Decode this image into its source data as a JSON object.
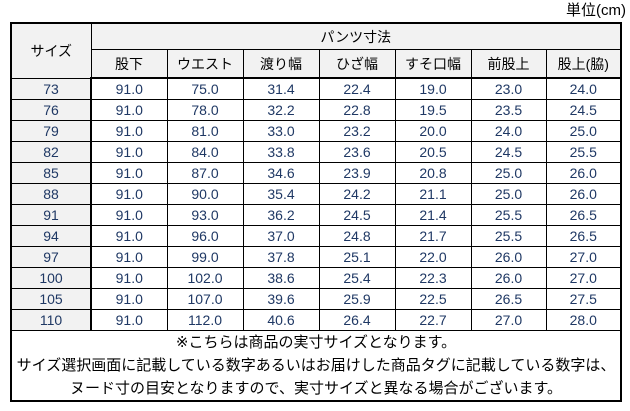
{
  "unit_label": "単位(cm)",
  "colors": {
    "header_bg": "#f2f2f2",
    "data_text": "#1f3864",
    "header_text": "#000000",
    "border": "#000000"
  },
  "table": {
    "corner_header": "サイズ",
    "group_header": "パンツ寸法",
    "columns": [
      "股下",
      "ウエスト",
      "渡り幅",
      "ひざ幅",
      "すそ口幅",
      "前股上",
      "股上(脇)"
    ],
    "rows": [
      {
        "size": "73",
        "values": [
          "91.0",
          "75.0",
          "31.4",
          "22.4",
          "19.0",
          "23.0",
          "24.0"
        ]
      },
      {
        "size": "76",
        "values": [
          "91.0",
          "78.0",
          "32.2",
          "22.8",
          "19.5",
          "23.5",
          "24.5"
        ]
      },
      {
        "size": "79",
        "values": [
          "91.0",
          "81.0",
          "33.0",
          "23.2",
          "20.0",
          "24.0",
          "25.0"
        ]
      },
      {
        "size": "82",
        "values": [
          "91.0",
          "84.0",
          "33.8",
          "23.6",
          "20.5",
          "24.5",
          "25.5"
        ]
      },
      {
        "size": "85",
        "values": [
          "91.0",
          "87.0",
          "34.6",
          "23.9",
          "20.8",
          "25.0",
          "26.0"
        ]
      },
      {
        "size": "88",
        "values": [
          "91.0",
          "90.0",
          "35.4",
          "24.2",
          "21.1",
          "25.0",
          "26.0"
        ]
      },
      {
        "size": "91",
        "values": [
          "91.0",
          "93.0",
          "36.2",
          "24.5",
          "21.4",
          "25.5",
          "26.5"
        ]
      },
      {
        "size": "94",
        "values": [
          "91.0",
          "96.0",
          "37.0",
          "24.8",
          "21.7",
          "25.5",
          "26.5"
        ]
      },
      {
        "size": "97",
        "values": [
          "91.0",
          "99.0",
          "37.8",
          "25.1",
          "22.0",
          "26.0",
          "27.0"
        ]
      },
      {
        "size": "100",
        "values": [
          "91.0",
          "102.0",
          "38.6",
          "25.4",
          "22.3",
          "26.0",
          "27.0"
        ]
      },
      {
        "size": "105",
        "values": [
          "91.0",
          "107.0",
          "39.6",
          "25.9",
          "22.5",
          "26.5",
          "27.5"
        ]
      },
      {
        "size": "110",
        "values": [
          "91.0",
          "112.0",
          "40.6",
          "26.4",
          "22.7",
          "27.0",
          "28.0"
        ]
      }
    ],
    "notes": [
      "※こちらは商品の実寸サイズとなります。",
      "サイズ選択画面に記載している数字あるいはお届けした商品タグに記載している数字は、",
      "ヌード寸の目安となりますので、実寸サイズと異なる場合がございます。"
    ]
  }
}
